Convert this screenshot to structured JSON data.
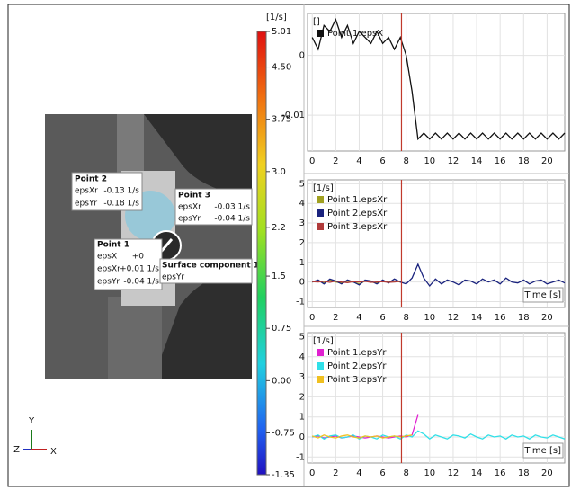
{
  "viewer": {
    "point2": {
      "title": "Point 2",
      "rows": [
        [
          "epsXr",
          "-0.13 1/s"
        ],
        [
          "epsYr",
          "-0.18 1/s"
        ]
      ]
    },
    "point3": {
      "title": "Point 3",
      "rows": [
        [
          "epsXr",
          "-0.03 1/s"
        ],
        [
          "epsYr",
          "-0.04 1/s"
        ]
      ]
    },
    "point1": {
      "title": "Point 1",
      "rows": [
        [
          "epsX",
          "+0"
        ],
        [
          "epsXr",
          "+0.01 1/s"
        ],
        [
          "epsYr",
          "-0.04 1/s"
        ]
      ]
    },
    "surface": {
      "title": "Surface component 1",
      "rows": [
        [
          "epsYr"
        ]
      ]
    },
    "axes": {
      "y": "Y",
      "z": "Z",
      "x": "X"
    }
  },
  "colorbar": {
    "unit": "[1/s]",
    "lim": [
      -1.35,
      5.01
    ],
    "ticks": [
      5.01,
      {
        "value": 4.5,
        "label": "4.50"
      },
      3.75,
      {
        "value": 3,
        "label": "3.0"
      },
      2.2,
      1.5,
      0.75,
      {
        "value": 0,
        "label": "0.00"
      },
      -0.75,
      -1.35
    ]
  },
  "chart_data": [
    {
      "type": "line",
      "ylabel": "[]",
      "vline": 7.6,
      "vline_color": "#c0392b",
      "x": [
        0,
        0.5,
        1,
        1.5,
        2,
        2.5,
        3,
        3.5,
        4,
        4.5,
        5,
        5.5,
        6,
        6.5,
        7,
        7.5,
        8,
        8.5,
        9,
        9.5,
        10,
        10.5,
        11,
        11.5,
        12,
        12.5,
        13,
        13.5,
        14,
        14.5,
        15,
        15.5,
        16,
        16.5,
        17,
        17.5,
        18,
        18.5,
        19,
        19.5,
        20,
        20.5,
        21,
        21.5
      ],
      "series": [
        {
          "name": "Point 1.epsX",
          "color": "#111111",
          "values": [
            0.003,
            0.001,
            0.005,
            0.004,
            0.006,
            0.003,
            0.005,
            0.002,
            0.004,
            0.003,
            0.002,
            0.004,
            0.002,
            0.003,
            0.001,
            0.003,
            0,
            -0.006,
            -0.014,
            -0.013,
            -0.014,
            -0.013,
            -0.014,
            -0.013,
            -0.014,
            -0.013,
            -0.014,
            -0.013,
            -0.014,
            -0.013,
            -0.014,
            -0.013,
            -0.014,
            -0.013,
            -0.014,
            -0.013,
            -0.014,
            -0.013,
            -0.014,
            -0.013,
            -0.014,
            -0.013,
            -0.014,
            -0.013
          ]
        }
      ],
      "xlim": [
        -0.4,
        21.5
      ],
      "ylim": [
        -0.016,
        0.007
      ],
      "xticks": [
        0,
        2,
        4,
        6,
        8,
        10,
        12,
        14,
        16,
        18,
        20
      ],
      "yticks": [
        -0.01,
        0
      ],
      "grid": true
    },
    {
      "type": "line",
      "ylabel": "[1/s]",
      "xlabel": "Time [s]",
      "vline": 7.6,
      "vline_color": "#c0392b",
      "x": [
        0,
        0.5,
        1,
        1.5,
        2,
        2.5,
        3,
        3.5,
        4,
        4.5,
        5,
        5.5,
        6,
        6.5,
        7,
        7.5,
        8,
        8.5,
        9,
        9.5,
        10,
        10.5,
        11,
        11.5,
        12,
        12.5,
        13,
        13.5,
        14,
        14.5,
        15,
        15.5,
        16,
        16.5,
        17,
        17.5,
        18,
        18.5,
        19,
        19.5,
        20,
        20.5,
        21,
        21.5
      ],
      "series": [
        {
          "name": "Point 1.epsXr",
          "color": "#a0a020",
          "values": [
            0,
            0.05,
            -0.05,
            0.1,
            0,
            -0.05,
            0.05,
            0,
            -0.1,
            0.05,
            0,
            -0.05,
            0.05,
            0,
            0.05,
            0,
            null,
            null,
            null,
            null,
            null,
            null,
            null,
            null,
            null,
            null,
            null,
            null,
            null,
            null,
            null,
            null,
            null,
            null,
            null,
            null,
            null,
            null,
            null,
            null,
            null,
            null,
            null,
            null
          ]
        },
        {
          "name": "Point 2.epsXr",
          "color": "#1a237e",
          "values": [
            0,
            0.1,
            -0.1,
            0.15,
            0.05,
            -0.1,
            0.1,
            0,
            -0.15,
            0.1,
            0.05,
            -0.1,
            0.1,
            -0.05,
            0.15,
            0,
            -0.1,
            0.2,
            0.9,
            0.2,
            -0.2,
            0.15,
            -0.1,
            0.1,
            0,
            -0.15,
            0.1,
            0.05,
            -0.1,
            0.15,
            0,
            0.1,
            -0.1,
            0.2,
            0,
            -0.05,
            0.1,
            -0.1,
            0.05,
            0.1,
            -0.1,
            0,
            0.1,
            -0.05
          ]
        },
        {
          "name": "Point 3.epsXr",
          "color": "#b03a3a",
          "values": [
            0.02,
            0,
            0.03,
            -0.02,
            0.05,
            0,
            -0.03,
            0.02,
            0,
            0.03,
            -0.02,
            0,
            0.02,
            -0.02,
            0,
            0.03,
            null,
            null,
            null,
            null,
            null,
            null,
            null,
            null,
            null,
            null,
            null,
            null,
            null,
            null,
            null,
            null,
            null,
            null,
            null,
            null,
            null,
            null,
            null,
            null,
            null,
            null,
            null,
            null
          ]
        }
      ],
      "xlim": [
        -0.4,
        21.5
      ],
      "ylim": [
        -1.3,
        5.2
      ],
      "xticks": [
        0,
        2,
        4,
        6,
        8,
        10,
        12,
        14,
        16,
        18,
        20
      ],
      "yticks": [
        -1,
        0,
        1,
        2,
        3,
        4,
        5
      ],
      "grid": true
    },
    {
      "type": "line",
      "ylabel": "[1/s]",
      "xlabel": "Time [s]",
      "vline": 7.6,
      "vline_color": "#c0392b",
      "x": [
        0,
        0.5,
        1,
        1.5,
        2,
        2.5,
        3,
        3.5,
        4,
        4.5,
        5,
        5.5,
        6,
        6.5,
        7,
        7.5,
        8,
        8.5,
        9,
        9.5,
        10,
        10.5,
        11,
        11.5,
        12,
        12.5,
        13,
        13.5,
        14,
        14.5,
        15,
        15.5,
        16,
        16.5,
        17,
        17.5,
        18,
        18.5,
        19,
        19.5,
        20,
        20.5,
        21,
        21.5
      ],
      "series": [
        {
          "name": "Point 1.epsYr",
          "color": "#e020d0",
          "values": [
            0,
            0.05,
            -0.05,
            0,
            0.05,
            -0.05,
            0,
            0.05,
            0,
            -0.05,
            0,
            0.05,
            0,
            -0.05,
            0,
            0.05,
            0,
            0.1,
            1.1,
            null,
            null,
            null,
            null,
            null,
            null,
            null,
            null,
            null,
            null,
            null,
            null,
            null,
            null,
            null,
            null,
            null,
            null,
            null,
            null,
            null,
            null,
            null,
            null,
            null
          ]
        },
        {
          "name": "Point 2.epsYr",
          "color": "#30e0e8",
          "values": [
            0,
            0.1,
            -0.1,
            0.05,
            0.1,
            -0.05,
            0,
            0.1,
            -0.1,
            0.05,
            0,
            -0.1,
            0.1,
            0,
            0.05,
            -0.1,
            0.1,
            0,
            0.3,
            0.15,
            -0.1,
            0.1,
            0,
            -0.1,
            0.1,
            0.05,
            -0.05,
            0.15,
            0,
            -0.1,
            0.1,
            0,
            0.05,
            -0.1,
            0.1,
            0,
            0.05,
            -0.1,
            0.1,
            0,
            -0.05,
            0.1,
            0,
            -0.1
          ]
        },
        {
          "name": "Point 3.epsYr",
          "color": "#f0c020",
          "values": [
            0.05,
            -0.05,
            0.1,
            0,
            -0.05,
            0.05,
            0.1,
            0,
            -0.05,
            0.05,
            0,
            0.05,
            -0.05,
            0,
            0.05,
            0,
            0.05,
            0.1,
            null,
            null,
            null,
            null,
            null,
            null,
            null,
            null,
            null,
            null,
            null,
            null,
            null,
            null,
            null,
            null,
            null,
            null,
            null,
            null,
            null,
            null,
            null,
            null,
            null,
            null
          ]
        }
      ],
      "xlim": [
        -0.4,
        21.5
      ],
      "ylim": [
        -1.3,
        5.2
      ],
      "xticks": [
        0,
        2,
        4,
        6,
        8,
        10,
        12,
        14,
        16,
        18,
        20
      ],
      "yticks": [
        -1,
        0,
        1,
        2,
        3,
        4,
        5
      ],
      "grid": true
    }
  ]
}
